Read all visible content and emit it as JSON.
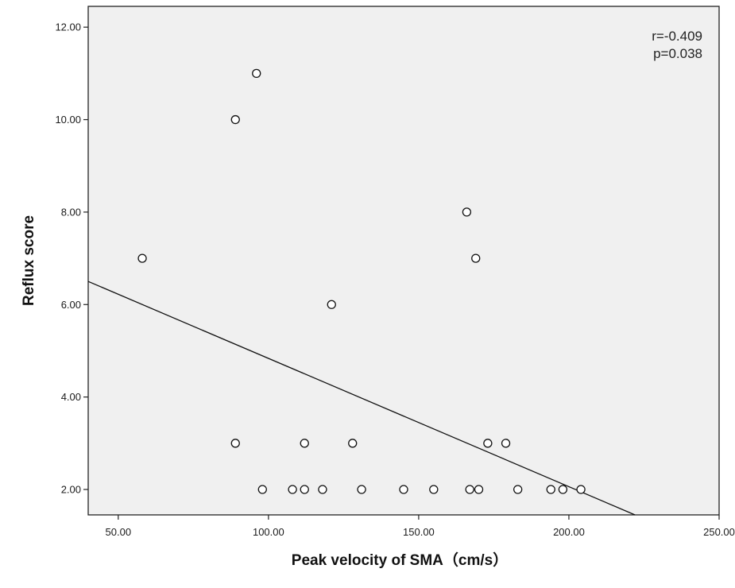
{
  "chart_data": {
    "type": "scatter",
    "xlabel": "Peak velocity of SMA（cm/s）",
    "ylabel": "Reflux score",
    "xlim": [
      40,
      250
    ],
    "ylim": [
      1.45,
      12.45
    ],
    "x_ticks": [
      50,
      100,
      150,
      200,
      250
    ],
    "x_tick_labels": [
      "50.00",
      "100.00",
      "150.00",
      "200.00",
      "250.00"
    ],
    "y_ticks": [
      2,
      4,
      6,
      8,
      10,
      12
    ],
    "y_tick_labels": [
      "2.00",
      "4.00",
      "6.00",
      "8.00",
      "10.00",
      "12.00"
    ],
    "grid": false,
    "legend": "none",
    "annotations": [
      "r=-0.409",
      "p=0.038"
    ],
    "fit_line": {
      "x1": 40,
      "y1": 6.5,
      "x2": 222,
      "y2": 1.45
    },
    "points": [
      {
        "x": 58,
        "y": 7
      },
      {
        "x": 89,
        "y": 10
      },
      {
        "x": 96,
        "y": 11
      },
      {
        "x": 89,
        "y": 3
      },
      {
        "x": 98,
        "y": 2
      },
      {
        "x": 108,
        "y": 2
      },
      {
        "x": 112,
        "y": 2
      },
      {
        "x": 112,
        "y": 3
      },
      {
        "x": 118,
        "y": 2
      },
      {
        "x": 121,
        "y": 6
      },
      {
        "x": 128,
        "y": 3
      },
      {
        "x": 131,
        "y": 2
      },
      {
        "x": 145,
        "y": 2
      },
      {
        "x": 155,
        "y": 2
      },
      {
        "x": 166,
        "y": 8
      },
      {
        "x": 167,
        "y": 2
      },
      {
        "x": 169,
        "y": 7
      },
      {
        "x": 170,
        "y": 2
      },
      {
        "x": 173,
        "y": 3
      },
      {
        "x": 179,
        "y": 3
      },
      {
        "x": 183,
        "y": 2
      },
      {
        "x": 194,
        "y": 2
      },
      {
        "x": 198,
        "y": 2
      },
      {
        "x": 204,
        "y": 2
      }
    ],
    "colors": {
      "plot_bg": "#f0f0f0",
      "axis": "#222222",
      "marker_stroke": "#111111",
      "marker_fill": "#ffffff",
      "fit_line": "#111111"
    }
  }
}
